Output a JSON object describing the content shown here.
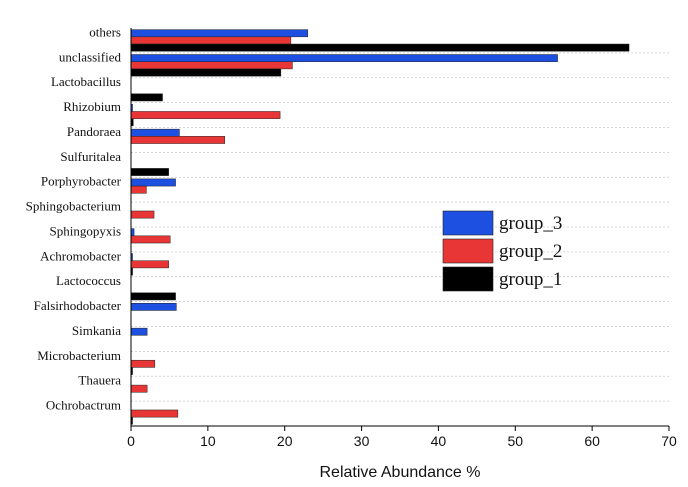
{
  "chart_data": {
    "type": "bar",
    "orientation": "horizontal",
    "categories": [
      "others",
      "unclassified",
      "Lactobacillus",
      "Rhizobium",
      "Pandoraea",
      "Sulfuritalea",
      "Porphyrobacter",
      "Sphingobacterium",
      "Sphingopyxis",
      "Achromobacter",
      "Lactococcus",
      "Falsirhodobacter",
      "Simkania",
      "Microbacterium",
      "Thauera",
      "Ochrobactrum"
    ],
    "series": [
      {
        "name": "group_3",
        "color": "#1d4fe0",
        "values": [
          23.0,
          55.5,
          0.0,
          0.2,
          6.3,
          0.0,
          5.8,
          0.0,
          0.4,
          0.2,
          0.0,
          5.9,
          2.1,
          0.0,
          0.0,
          0.0
        ]
      },
      {
        "name": "group_2",
        "color": "#e83535",
        "values": [
          20.8,
          21.0,
          0.0,
          19.4,
          12.2,
          0.0,
          2.0,
          3.0,
          5.1,
          4.9,
          0.0,
          0.0,
          0.0,
          3.1,
          2.1,
          6.1
        ]
      },
      {
        "name": "group_1",
        "color": "#000000",
        "values": [
          64.8,
          19.5,
          4.1,
          0.3,
          0.0,
          4.9,
          0.0,
          0.0,
          0.0,
          0.2,
          5.8,
          0.0,
          0.0,
          0.2,
          0.0,
          0.2
        ]
      }
    ],
    "xlabel": "Relative Abundance %",
    "ylabel": "",
    "xlim": [
      0,
      70
    ],
    "xticks": [
      0,
      10,
      20,
      30,
      40,
      50,
      60,
      70
    ],
    "legend_order": [
      "group_3",
      "group_2",
      "group_1"
    ],
    "legend_position": "right",
    "grid": "dashed horizontal"
  }
}
